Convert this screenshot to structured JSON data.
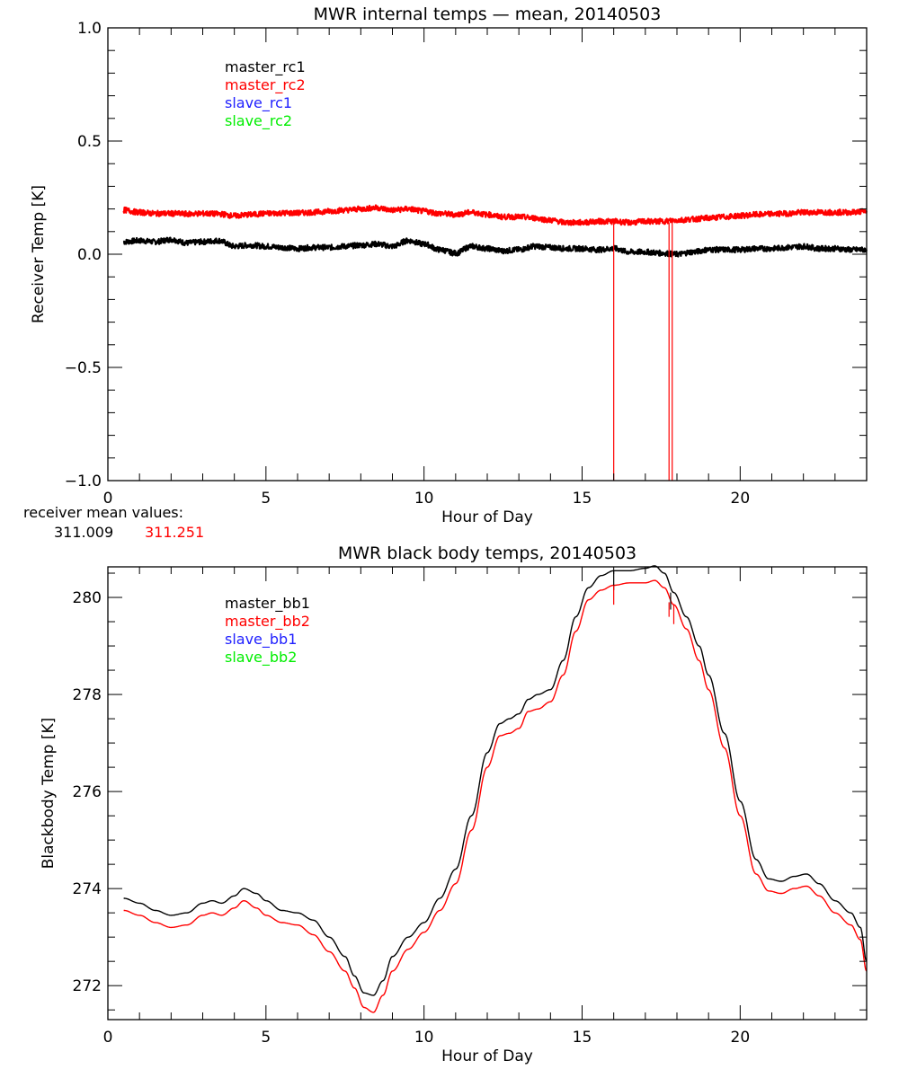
{
  "chart_data": [
    {
      "type": "line",
      "title": "MWR internal temps — mean, 20140503",
      "xlabel": "Hour of Day",
      "ylabel": "Receiver Temp [K]",
      "xlim": [
        0,
        24
      ],
      "ylim": [
        -1.0,
        1.0
      ],
      "xticks": [
        0,
        5,
        10,
        15,
        20
      ],
      "xtick_labels": [
        "0",
        "5",
        "10",
        "15",
        "20"
      ],
      "yticks": [
        -1.0,
        -0.5,
        0.0,
        0.5,
        1.0
      ],
      "ytick_labels": [
        "−1.0",
        "−0.5",
        "0.0",
        "0.5",
        "1.0"
      ],
      "grid": false,
      "legend_position": "top-left",
      "legend": [
        {
          "label": "master_rc1",
          "color": "#000000"
        },
        {
          "label": "master_rc2",
          "color": "#ff0000"
        },
        {
          "label": "slave_rc1",
          "color": "#2020ff"
        },
        {
          "label": "slave_rc2",
          "color": "#00ff00"
        }
      ],
      "series": [
        {
          "name": "master_rc1",
          "color": "#000000",
          "x": [
            0.5,
            1.0,
            1.5,
            2.0,
            2.5,
            3.0,
            3.5,
            4.0,
            4.5,
            5.0,
            5.5,
            6.0,
            6.5,
            7.0,
            7.5,
            8.0,
            8.5,
            9.0,
            9.5,
            10.0,
            10.5,
            11.0,
            11.5,
            12.0,
            12.5,
            13.0,
            13.5,
            14.0,
            14.5,
            15.0,
            15.5,
            16.0,
            16.5,
            17.0,
            17.5,
            18.0,
            18.5,
            19.0,
            19.5,
            20.0,
            20.5,
            21.0,
            21.5,
            22.0,
            22.5,
            23.0,
            23.5,
            24.0
          ],
          "y": [
            0.055,
            0.06,
            0.055,
            0.065,
            0.05,
            0.055,
            0.06,
            0.035,
            0.04,
            0.035,
            0.03,
            0.025,
            0.03,
            0.03,
            0.035,
            0.04,
            0.045,
            0.035,
            0.06,
            0.045,
            0.02,
            0.005,
            0.035,
            0.025,
            0.015,
            0.02,
            0.035,
            0.03,
            0.025,
            0.025,
            0.02,
            0.025,
            0.01,
            0.01,
            0.005,
            0.0,
            0.01,
            0.02,
            0.02,
            0.02,
            0.025,
            0.025,
            0.03,
            0.035,
            0.025,
            0.025,
            0.02,
            0.02
          ]
        },
        {
          "name": "master_rc2",
          "color": "#ff0000",
          "x": [
            0.5,
            1.0,
            1.5,
            2.0,
            2.5,
            3.0,
            3.5,
            4.0,
            4.5,
            5.0,
            5.5,
            6.0,
            6.5,
            7.0,
            7.5,
            8.0,
            8.5,
            9.0,
            9.5,
            10.0,
            10.5,
            11.0,
            11.5,
            12.0,
            12.5,
            13.0,
            13.5,
            14.0,
            14.5,
            15.0,
            15.5,
            16.0,
            16.5,
            17.0,
            17.5,
            18.0,
            18.5,
            19.0,
            19.5,
            20.0,
            20.5,
            21.0,
            21.5,
            22.0,
            22.5,
            23.0,
            23.5,
            24.0
          ],
          "y": [
            0.195,
            0.185,
            0.18,
            0.18,
            0.178,
            0.18,
            0.178,
            0.17,
            0.175,
            0.18,
            0.182,
            0.182,
            0.185,
            0.19,
            0.195,
            0.2,
            0.205,
            0.195,
            0.2,
            0.19,
            0.18,
            0.175,
            0.185,
            0.175,
            0.165,
            0.165,
            0.16,
            0.15,
            0.14,
            0.14,
            0.145,
            0.145,
            0.14,
            0.145,
            0.145,
            0.15,
            0.155,
            0.16,
            0.165,
            0.17,
            0.175,
            0.178,
            0.18,
            0.185,
            0.185,
            0.185,
            0.185,
            0.19
          ]
        }
      ],
      "spikes": [
        {
          "series": "master_rc2",
          "x": 16.0,
          "y_from": 0.14,
          "y_to": -1.0
        },
        {
          "series": "master_rc2",
          "x": 17.75,
          "y_from": 0.14,
          "y_to": -1.0
        },
        {
          "series": "master_rc2",
          "x": 17.85,
          "y_from": 0.14,
          "y_to": -1.0
        }
      ],
      "annotation": {
        "label": "receiver mean values:",
        "values": [
          {
            "text": "311.009",
            "color": "#000000"
          },
          {
            "text": "311.251",
            "color": "#ff0000"
          }
        ]
      }
    },
    {
      "type": "line",
      "title": "MWR black body temps, 20140503",
      "xlabel": "Hour of Day",
      "ylabel": "Blackbody Temp [K]",
      "xlim": [
        0,
        24
      ],
      "ylim": [
        271.3,
        280.63
      ],
      "xticks": [
        0,
        5,
        10,
        15,
        20
      ],
      "xtick_labels": [
        "0",
        "5",
        "10",
        "15",
        "20"
      ],
      "yticks": [
        272,
        274,
        276,
        278,
        280
      ],
      "ytick_labels": [
        "272",
        "274",
        "276",
        "278",
        "280"
      ],
      "grid": false,
      "legend_position": "top-left",
      "legend": [
        {
          "label": "master_bb1",
          "color": "#000000"
        },
        {
          "label": "master_bb2",
          "color": "#ff0000"
        },
        {
          "label": "slave_bb1",
          "color": "#2020ff"
        },
        {
          "label": "slave_bb2",
          "color": "#00ff00"
        }
      ],
      "series": [
        {
          "name": "master_bb1",
          "color": "#000000",
          "x": [
            0.5,
            1.0,
            1.5,
            2.0,
            2.5,
            3.0,
            3.3,
            3.6,
            4.0,
            4.3,
            4.7,
            5.0,
            5.5,
            6.0,
            6.5,
            7.0,
            7.5,
            7.8,
            8.1,
            8.4,
            8.7,
            9.0,
            9.5,
            10.0,
            10.5,
            11.0,
            11.5,
            12.0,
            12.4,
            12.7,
            13.0,
            13.3,
            13.6,
            14.0,
            14.4,
            14.8,
            15.2,
            15.6,
            16.0,
            16.5,
            17.0,
            17.3,
            17.6,
            17.9,
            18.3,
            18.7,
            19.0,
            19.5,
            20.0,
            20.5,
            20.9,
            21.3,
            21.7,
            22.1,
            22.5,
            23.0,
            23.5,
            23.8,
            24.0
          ],
          "y": [
            273.8,
            273.7,
            273.55,
            273.45,
            273.5,
            273.7,
            273.75,
            273.7,
            273.85,
            274.0,
            273.9,
            273.75,
            273.55,
            273.5,
            273.35,
            273.0,
            272.6,
            272.2,
            271.85,
            271.8,
            272.1,
            272.6,
            273.0,
            273.3,
            273.8,
            274.4,
            275.5,
            276.8,
            277.4,
            277.5,
            277.6,
            277.9,
            278.0,
            278.1,
            278.7,
            279.6,
            280.2,
            280.45,
            280.55,
            280.55,
            280.6,
            280.65,
            280.5,
            280.1,
            279.6,
            279.0,
            278.4,
            277.2,
            275.8,
            274.6,
            274.2,
            274.15,
            274.25,
            274.3,
            274.1,
            273.75,
            273.5,
            273.2,
            272.5
          ]
        },
        {
          "name": "master_bb2",
          "color": "#ff0000",
          "x": [
            0.5,
            1.0,
            1.5,
            2.0,
            2.5,
            3.0,
            3.3,
            3.6,
            4.0,
            4.3,
            4.7,
            5.0,
            5.5,
            6.0,
            6.5,
            7.0,
            7.5,
            7.8,
            8.1,
            8.4,
            8.7,
            9.0,
            9.5,
            10.0,
            10.5,
            11.0,
            11.5,
            12.0,
            12.4,
            12.7,
            13.0,
            13.3,
            13.6,
            14.0,
            14.4,
            14.8,
            15.2,
            15.6,
            16.0,
            16.5,
            17.0,
            17.3,
            17.6,
            17.9,
            18.3,
            18.7,
            19.0,
            19.5,
            20.0,
            20.5,
            20.9,
            21.3,
            21.7,
            22.1,
            22.5,
            23.0,
            23.5,
            23.8,
            24.0
          ],
          "y": [
            273.55,
            273.45,
            273.3,
            273.2,
            273.25,
            273.45,
            273.5,
            273.45,
            273.6,
            273.75,
            273.6,
            273.45,
            273.3,
            273.25,
            273.05,
            272.7,
            272.3,
            271.95,
            271.55,
            271.45,
            271.8,
            272.3,
            272.75,
            273.1,
            273.55,
            274.1,
            275.2,
            276.5,
            277.15,
            277.2,
            277.3,
            277.65,
            277.7,
            277.85,
            278.4,
            279.3,
            279.95,
            280.15,
            280.25,
            280.3,
            280.3,
            280.35,
            280.2,
            279.85,
            279.35,
            278.7,
            278.1,
            276.9,
            275.5,
            274.3,
            273.95,
            273.9,
            274.0,
            274.05,
            273.85,
            273.5,
            273.25,
            272.95,
            272.3
          ]
        }
      ],
      "spikes": [
        {
          "series": "master_bb1",
          "x": 16.0,
          "y_from": 280.55,
          "y_to": 280.15
        },
        {
          "series": "master_bb2",
          "x": 16.0,
          "y_from": 280.25,
          "y_to": 279.85
        },
        {
          "series": "master_bb1",
          "x": 17.8,
          "y_from": 280.1,
          "y_to": 279.75
        },
        {
          "series": "master_bb2",
          "x": 17.75,
          "y_from": 279.9,
          "y_to": 279.6
        },
        {
          "series": "master_bb2",
          "x": 17.9,
          "y_from": 279.85,
          "y_to": 279.45
        }
      ]
    }
  ]
}
